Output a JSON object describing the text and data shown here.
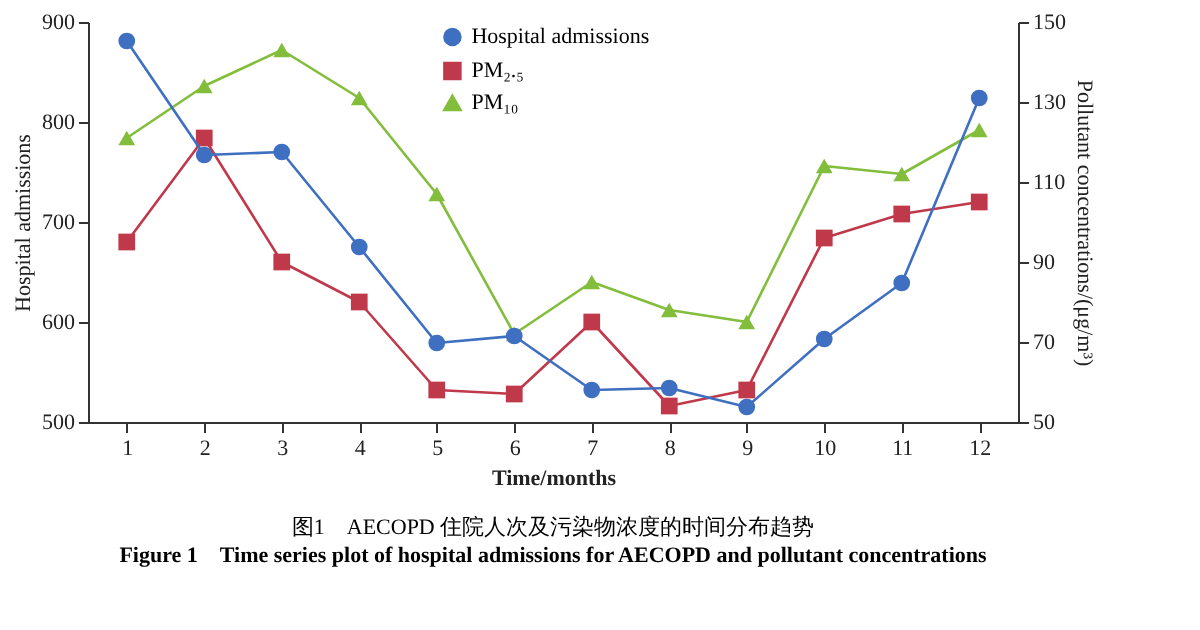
{
  "chart_data": {
    "type": "line",
    "xlabel": "Time/months",
    "ylabel": "Hospital admissions",
    "y2label": "Pollutant concentrations/(μg/m³)",
    "x": [
      1,
      2,
      3,
      4,
      5,
      6,
      7,
      8,
      9,
      10,
      11,
      12
    ],
    "xlim": [
      0.5,
      12.5
    ],
    "xticks": [
      1,
      2,
      3,
      4,
      5,
      6,
      7,
      8,
      9,
      10,
      11,
      12
    ],
    "ylim": [
      500,
      900
    ],
    "yticks": [
      500,
      600,
      700,
      800,
      900
    ],
    "y2lim": [
      50,
      150
    ],
    "y2ticks": [
      50,
      70,
      90,
      110,
      130,
      150
    ],
    "grid": false,
    "legend": "top",
    "line_style": "solid",
    "series": [
      {
        "name": "Hospital admissions",
        "color": "#3f6fc0",
        "marker": "circle",
        "values": [
          881,
          767,
          770,
          675,
          579,
          586,
          532,
          534,
          515,
          583,
          639,
          824
        ]
      },
      {
        "name": "PM₂.₅",
        "color": "#c0394b",
        "marker": "square",
        "axis": "y2",
        "values": [
          95,
          121,
          90,
          80,
          58,
          57,
          75,
          54,
          58,
          96,
          102,
          105
        ]
      },
      {
        "name": "PM₁₀",
        "color": "#82bd3c",
        "marker": "triangle",
        "axis": "y2",
        "values": [
          121,
          134,
          143,
          131,
          107,
          72,
          85,
          78,
          75,
          114,
          112,
          123
        ]
      }
    ],
    "annotations": [
      "图1　AECOPD 住院人次及污染物浓度的时间分布趋势",
      "Figure 1　Time series plot of hospital admissions for AECOPD and pollutant concentrations"
    ]
  }
}
